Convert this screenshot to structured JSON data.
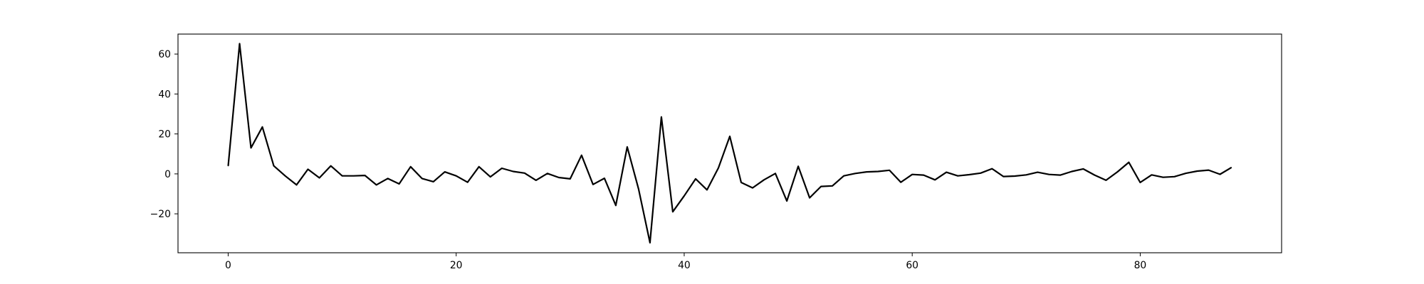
{
  "chart_data": {
    "type": "line",
    "title": "",
    "xlabel": "",
    "ylabel": "",
    "xlim": [
      -4.4,
      92.4
    ],
    "ylim": [
      -39.5,
      70.0
    ],
    "xticks": [
      0,
      20,
      40,
      60,
      80
    ],
    "yticks": [
      -20,
      0,
      20,
      40,
      60
    ],
    "grid": false,
    "line_color": "#000000",
    "series": [
      {
        "x": [
          0,
          1,
          2,
          3,
          4,
          5,
          6,
          7,
          8,
          9,
          10,
          11,
          12,
          13,
          14,
          15,
          16,
          17,
          18,
          19,
          20,
          21,
          22,
          23,
          24,
          25,
          26,
          27,
          28,
          29,
          30,
          31,
          32,
          33,
          34,
          35,
          36,
          37,
          38,
          39,
          40,
          41,
          42,
          43,
          44,
          45,
          46,
          47,
          48,
          49,
          50,
          51,
          52,
          53,
          54,
          55,
          56,
          57,
          58,
          59,
          60,
          61,
          62,
          63,
          64,
          65,
          66,
          67,
          68,
          69,
          70,
          71,
          72,
          73,
          74,
          75,
          76,
          77,
          78,
          79,
          80,
          81,
          82,
          83,
          84,
          85,
          86,
          87,
          88
        ],
        "values": [
          4.0,
          65.2,
          13.0,
          23.5,
          4.0,
          -1.0,
          -5.5,
          2.3,
          -2.0,
          4.0,
          -1.0,
          -1.0,
          -0.8,
          -5.5,
          -2.3,
          -5.0,
          3.6,
          -2.3,
          -3.9,
          1.0,
          -1.0,
          -4.2,
          3.6,
          -1.5,
          2.8,
          1.2,
          0.4,
          -3.2,
          0.2,
          -1.8,
          -2.5,
          9.3,
          -5.3,
          -2.2,
          -15.8,
          13.5,
          -7.6,
          -34.5,
          28.5,
          -19.0,
          -11.0,
          -2.5,
          -8.0,
          3.0,
          18.8,
          -4.3,
          -7.0,
          -3.0,
          0.2,
          -13.6,
          3.8,
          -12.0,
          -6.3,
          -6.0,
          -1.0,
          0.2,
          1.0,
          1.2,
          1.8,
          -4.2,
          -0.3,
          -0.6,
          -3.0,
          0.8,
          -1.0,
          -0.4,
          0.4,
          2.6,
          -1.3,
          -1.1,
          -0.5,
          0.8,
          -0.3,
          -0.6,
          1.2,
          2.5,
          -0.6,
          -3.2,
          1.0,
          5.8,
          -4.3,
          -0.5,
          -1.7,
          -1.4,
          0.3,
          1.4,
          1.9,
          -0.2,
          3.2
        ]
      }
    ]
  }
}
